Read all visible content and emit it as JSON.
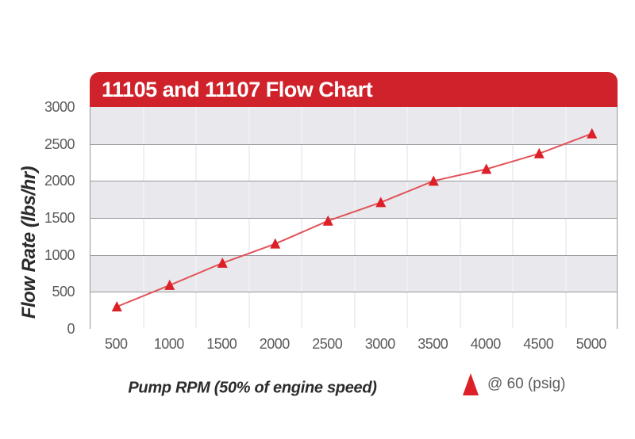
{
  "banner": {
    "title": "11105 and 11107 Flow Chart"
  },
  "axes": {
    "y_title": "Flow Rate (lbs/hr)",
    "x_title": "Pump RPM (50% of engine speed)"
  },
  "legend": {
    "label": "@ 60 (psig)",
    "marker": "red-triangle-icon"
  },
  "colors": {
    "banner_red": "#d0222a",
    "marker_red": "#dd1f27",
    "line_red": "#e25259",
    "band_gray": "#e9e9ed",
    "band_white": "#ffffff",
    "grid_major": "#97979d",
    "grid_minor": "#eef0f3",
    "tick_text": "#5a5b5e",
    "axis_title_text": "#2b2b2d",
    "title_text": "#ffffff"
  },
  "chart_data": {
    "type": "line",
    "title": "11105 and 11107 Flow Chart",
    "xlabel": "Pump RPM (50% of engine speed)",
    "ylabel": "Flow Rate (lbs/hr)",
    "x": [
      500,
      1000,
      1500,
      2000,
      2500,
      3000,
      3500,
      4000,
      4500,
      5000
    ],
    "series": [
      {
        "name": "@ 60 (psig)",
        "marker": "triangle",
        "values": [
          300,
          590,
          890,
          1150,
          1460,
          1710,
          2000,
          2160,
          2370,
          2640
        ]
      }
    ],
    "ylim": [
      0,
      3000
    ],
    "ytick_step": 500,
    "xlim_type": "category",
    "grid": "horizontal major lines every 500; faint vertical lines between categories",
    "background": "alternating gray/white horizontal bands every 500",
    "legend_position": "below chart, right side"
  }
}
